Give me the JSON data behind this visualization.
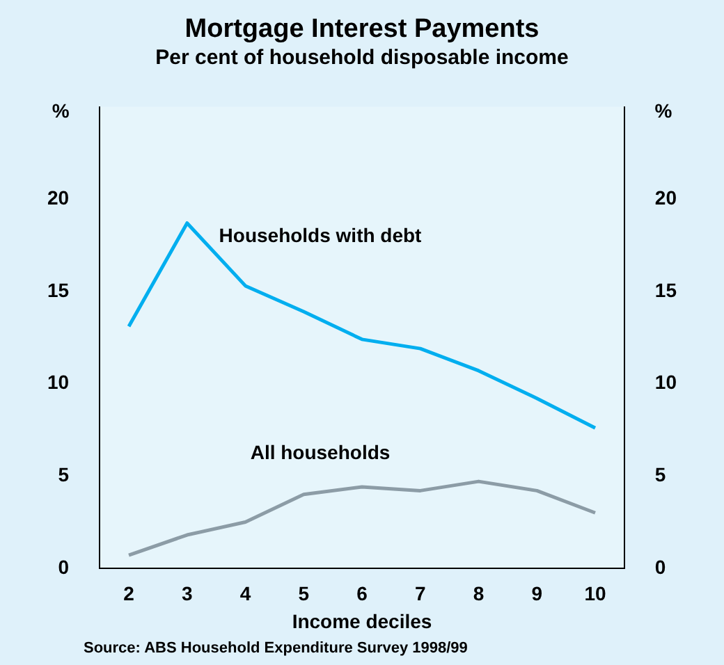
{
  "chart_data": {
    "type": "line",
    "title": "Mortgage Interest Payments",
    "subtitle": "Per cent of household disposable income",
    "xlabel": "Income deciles",
    "ylabel": "%",
    "y2label": "%",
    "categories": [
      "2",
      "3",
      "4",
      "5",
      "6",
      "7",
      "8",
      "9",
      "10"
    ],
    "series": [
      {
        "name": "Households with debt",
        "color": "#00aeef",
        "values": [
          13.1,
          18.7,
          15.3,
          13.9,
          12.4,
          11.9,
          10.7,
          9.2,
          7.6
        ]
      },
      {
        "name": "All households",
        "color": "#8c9ca6",
        "values": [
          0.7,
          1.8,
          2.5,
          4.0,
          4.4,
          4.2,
          4.7,
          4.2,
          3.0
        ]
      }
    ],
    "ylim": [
      0,
      25
    ],
    "yticks": [
      0,
      5,
      10,
      15,
      20
    ],
    "y2lim": [
      0,
      25
    ],
    "y2ticks": [
      0,
      5,
      10,
      15,
      20
    ],
    "grid": false,
    "legend": false,
    "marker": "none",
    "line_style": "solid",
    "annotations": [
      "Source: ABS Household Expenditure Survey 1998/99"
    ]
  }
}
